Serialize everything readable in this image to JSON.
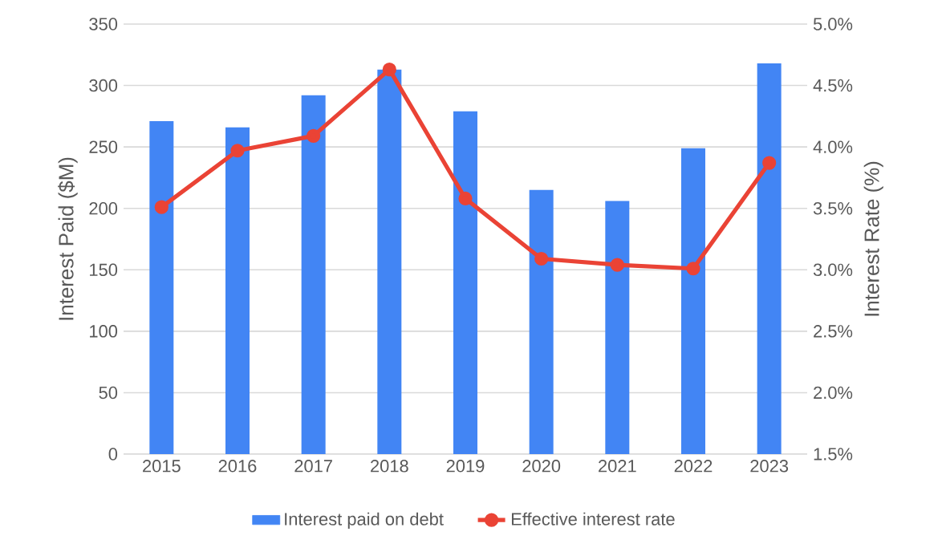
{
  "chart_data": {
    "type": "bar",
    "categories": [
      "2015",
      "2016",
      "2017",
      "2018",
      "2019",
      "2020",
      "2021",
      "2022",
      "2023"
    ],
    "ylabel": "Interest Paid ($M)",
    "y2label": "Interest Rate (%)",
    "ylim": [
      0,
      350
    ],
    "yticks": [
      0,
      50,
      100,
      150,
      200,
      250,
      300,
      350
    ],
    "y2lim": [
      1.5,
      5.0
    ],
    "y2ticks": [
      {
        "value": 1.5,
        "label": "1.5%"
      },
      {
        "value": 2.0,
        "label": "2.0%"
      },
      {
        "value": 2.5,
        "label": "2.5%"
      },
      {
        "value": 3.0,
        "label": "3.0%"
      },
      {
        "value": 3.5,
        "label": "3.5%"
      },
      {
        "value": 4.0,
        "label": "4.0%"
      },
      {
        "value": 4.5,
        "label": "4.5%"
      },
      {
        "value": 5.0,
        "label": "5.0%"
      }
    ],
    "grid": "y",
    "legend": "bottom",
    "series": [
      {
        "name": "Interest paid on debt",
        "color": "#4285f4",
        "values": [
          271,
          266,
          292,
          313,
          279,
          215,
          206,
          249,
          318
        ]
      },
      {
        "name": "Effective interest rate",
        "type": "line",
        "axis": "y2",
        "color": "#ea4335",
        "marker": "circle",
        "values": [
          3.51,
          3.97,
          4.09,
          4.63,
          3.58,
          3.09,
          3.04,
          3.01,
          3.87
        ]
      }
    ]
  }
}
